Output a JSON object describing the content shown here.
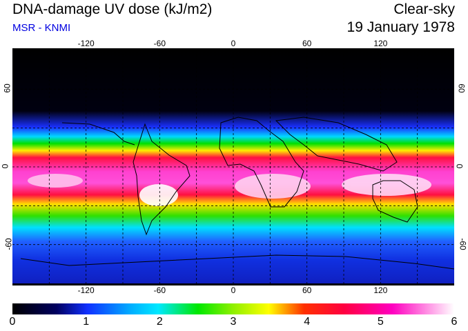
{
  "header": {
    "title": "DNA-damage UV dose (kJ/m2)",
    "source": "MSR - KNMI",
    "sky_condition": "Clear-sky",
    "date": "19 January 1978"
  },
  "map": {
    "projection": "equirectangular",
    "lon_range": [
      -180,
      180
    ],
    "lat_range": [
      -90,
      90
    ],
    "grid_lon": [
      -150,
      -120,
      -90,
      -60,
      -30,
      0,
      30,
      60,
      90,
      120,
      150
    ],
    "grid_lat": [
      -60,
      -30,
      0,
      30,
      60
    ],
    "lon_tick_labels": [
      "-120",
      "-60",
      "0",
      "60",
      "120"
    ],
    "lat_tick_labels": [
      "60",
      "0",
      "-60"
    ]
  },
  "colorbar": {
    "tick_labels": [
      "0",
      "1",
      "2",
      "3",
      "4",
      "5",
      "6"
    ],
    "min": 0,
    "max": 6,
    "colors": [
      "#000000",
      "#1030ff",
      "#00e8ff",
      "#00e800",
      "#ffff00",
      "#ff0040",
      "#ff00c0",
      "#ffffff"
    ]
  }
}
